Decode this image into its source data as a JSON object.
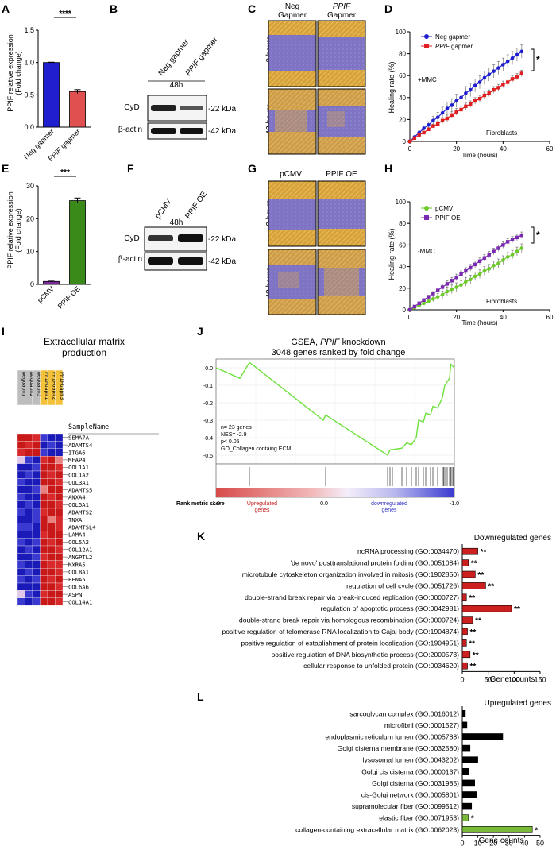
{
  "panels": {
    "A": {
      "letter": "A",
      "ylabel": "PPIF relative expression",
      "ylabel2": "(Fold change)",
      "yticks": [
        "0.0",
        "0.5",
        "1.0",
        "1.5"
      ],
      "categories": [
        "Neg gapmer",
        "PPIF gapmer"
      ],
      "cat2_italic": "PPIF",
      "cat2_rest": " gapmer",
      "sig": "****",
      "colors": [
        "#1f1fd0",
        "#e05050"
      ]
    },
    "B": {
      "letter": "B",
      "lane1": "Neg gapmer",
      "lane2_italic": "PPIF",
      "lane2_rest": " gapmer",
      "time": "48h",
      "row1": "CyD",
      "row2": "β-actin",
      "kda1": "-22 kDa",
      "kda2": "-42 kDa"
    },
    "C": {
      "letter": "C",
      "col1a": "Neg",
      "col1b": "Gapmer",
      "col2a_italic": "PPIF",
      "col2b": "Gapmer",
      "row1": "0 hours",
      "row2": "48 hours"
    },
    "D": {
      "letter": "D",
      "ylabel": "Healing rate (%)",
      "xlabel": "Time (hours)",
      "legend1": "Neg gapmer",
      "legend2_italic": "PPIF",
      "legend2_rest": " gapmer",
      "condition": "+MMC",
      "cell": "Fibroblasts",
      "sig": "*",
      "yticks": [
        "0",
        "20",
        "40",
        "60",
        "80",
        "100"
      ],
      "xticks": [
        "0",
        "20",
        "40",
        "60"
      ]
    },
    "E": {
      "letter": "E",
      "ylabel": "PPIF relative expression",
      "ylabel2": "(Fold change)",
      "yticks": [
        "0",
        "10",
        "20",
        "30"
      ],
      "categories": [
        "pCMV",
        "PPIF OE"
      ],
      "sig": "***",
      "colors": [
        "#7a2a9a",
        "#3a8a1a"
      ]
    },
    "F": {
      "letter": "F",
      "lane1": "pCMV",
      "lane2": "PPIF OE",
      "time": "48h",
      "row1": "CyD",
      "row2": "β-actin",
      "kda1": "-22 kDa",
      "kda2": "-42 kDa"
    },
    "G": {
      "letter": "G",
      "col1": "pCMV",
      "col2": "PPIF OE",
      "row1": "0 hours",
      "row2": "48 hours"
    },
    "H": {
      "letter": "H",
      "ylabel": "Healing rate (%)",
      "xlabel": "Time (hours)",
      "legend1": "pCMV",
      "legend2": "PPIF OE",
      "condition": "-MMC",
      "cell": "Fibroblasts",
      "sig": "*",
      "yticks": [
        "0",
        "20",
        "40",
        "60",
        "80",
        "100"
      ],
      "xticks": [
        "0",
        "20",
        "40",
        "60"
      ]
    },
    "I": {
      "letter": "I",
      "title1": "Extracellular matrix",
      "title2": "production",
      "samples": [
        "NegGapm1",
        "NegGapm2",
        "NegGapm3",
        "PPIFGapm1",
        "PPIFGapm2",
        "PPIFGapm3"
      ],
      "sample_header": "SampleName",
      "genes": [
        "SEMA7A",
        "ADAMTS4",
        "ITGA6",
        "MFAP4",
        "COL1A1",
        "COL1A2",
        "COL3A1",
        "ADAMTS5",
        "ANXA4",
        "COL5A1",
        "ADAMTS2",
        "TNXA",
        "ADAMTSL4",
        "LAMA4",
        "COL5A2",
        "COL12A1",
        "ANGPTL2",
        "MXRA5",
        "COL8A1",
        "EFNA5",
        "COL6A6",
        "ASPN",
        "COL14A1"
      ]
    },
    "J": {
      "letter": "J",
      "title1_pre": "GSEA, ",
      "title1_italic": "PPIF",
      "title1_post": " knockdown",
      "title2": "3048 genes ranked by fold change",
      "stat1": "n= 23 genes",
      "stat2": "NES= -2.9",
      "stat3": "p< 0.05",
      "stat4": "GO_Collagen containg ECM",
      "yticks": [
        "0.0",
        "-0.1",
        "-0.2",
        "-0.3",
        "-0.4",
        "-0.5"
      ],
      "rank_label": "Rank metric score",
      "rank_left": "1.0",
      "rank_mid": "0.0",
      "rank_right": "-1.0",
      "up1": "Upregulated",
      "up2": "genes",
      "down1": "downregulated",
      "down2": "genes"
    },
    "K": {
      "letter": "K",
      "title": "Downregulated genes",
      "xlabel": "Gene counts",
      "xticks": [
        "0",
        "50",
        "100",
        "150"
      ],
      "sig": "**",
      "color": "#cc1f1f"
    },
    "L": {
      "letter": "L",
      "title": "Upregulated genes",
      "xlabel": "Gene counts",
      "xticks": [
        "0",
        "10",
        "20",
        "30",
        "40",
        "50"
      ],
      "sig": "*"
    }
  },
  "chart_data": [
    {
      "panel": "A",
      "type": "bar",
      "categories": [
        "Neg gapmer",
        "PPIF gapmer"
      ],
      "values": [
        1.0,
        0.55
      ],
      "errors": [
        0.005,
        0.03
      ],
      "ylabel": "PPIF relative expression (Fold change)",
      "ylim": [
        0,
        1.5
      ]
    },
    {
      "panel": "D",
      "type": "line",
      "x": [
        0,
        2,
        4,
        6,
        8,
        10,
        12,
        14,
        16,
        18,
        20,
        22,
        24,
        26,
        28,
        30,
        32,
        34,
        36,
        38,
        40,
        42,
        44,
        46,
        48
      ],
      "series": [
        {
          "name": "Neg gapmer",
          "values": [
            0,
            4,
            8,
            12,
            15,
            19,
            22,
            26,
            30,
            33,
            37,
            40,
            44,
            47,
            51,
            54,
            58,
            61,
            64,
            67,
            70,
            73,
            76,
            79,
            82
          ],
          "err": 6
        },
        {
          "name": "PPIF gapmer",
          "values": [
            0,
            3,
            6,
            8,
            11,
            14,
            16,
            19,
            21,
            24,
            27,
            29,
            32,
            34,
            37,
            39,
            42,
            44,
            47,
            49,
            52,
            54,
            57,
            59,
            62
          ],
          "err": 3
        }
      ],
      "xlabel": "Time (hours)",
      "ylabel": "Healing rate (%)",
      "xlim": [
        0,
        60
      ],
      "ylim": [
        0,
        100
      ]
    },
    {
      "panel": "E",
      "type": "bar",
      "categories": [
        "pCMV",
        "PPIF OE"
      ],
      "values": [
        0.9,
        25.5
      ],
      "errors": [
        0.1,
        0.8
      ],
      "ylabel": "PPIF relative expression (Fold change)",
      "ylim": [
        0,
        30
      ]
    },
    {
      "panel": "H",
      "type": "line",
      "x": [
        0,
        2,
        4,
        6,
        8,
        10,
        12,
        14,
        16,
        18,
        20,
        22,
        24,
        26,
        28,
        30,
        32,
        34,
        36,
        38,
        40,
        42,
        44,
        46,
        48
      ],
      "series": [
        {
          "name": "pCMV",
          "values": [
            0,
            2,
            4,
            6,
            8,
            10,
            12,
            14,
            17,
            19,
            21,
            23,
            26,
            28,
            31,
            33,
            36,
            38,
            41,
            43,
            46,
            49,
            51,
            54,
            57
          ],
          "err": 4
        },
        {
          "name": "PPIF OE",
          "values": [
            0,
            3,
            6,
            9,
            12,
            15,
            18,
            21,
            24,
            27,
            30,
            33,
            36,
            39,
            42,
            45,
            48,
            51,
            54,
            57,
            60,
            63,
            65,
            67,
            69
          ],
          "err": 3
        }
      ],
      "xlabel": "Time (hours)",
      "ylabel": "Healing rate (%)",
      "xlim": [
        0,
        60
      ],
      "ylim": [
        0,
        100
      ]
    },
    {
      "panel": "K",
      "type": "bar",
      "orientation": "horizontal",
      "categories": [
        "ncRNA processing (GO:0034470)",
        "'de novo' posttranslational protein folding (GO:0051084)",
        "microtubule cytoskeleton organization involved in mitosis (GO:1902850)",
        "regulation of cell cycle (GO:0051726)",
        "double-strand break repair via break-induced replication (GO:0000727)",
        "regulation of apoptotic process (GO:0042981)",
        "double-strand break repair via homologous recombination (GO:0000724)",
        "positive regulation of telomerase RNA localization to Cajal body (GO:1904874)",
        "positive regulation of establishment of protein localization (GO:1904951)",
        "positive regulation of DNA biosynthetic process (GO:2000573)",
        "cellular response to unfolded protein (GO:0034620)"
      ],
      "values": [
        30,
        12,
        25,
        45,
        8,
        95,
        20,
        10,
        8,
        15,
        10
      ],
      "xlabel": "Gene counts",
      "xlim": [
        0,
        150
      ]
    },
    {
      "panel": "L",
      "type": "bar",
      "orientation": "horizontal",
      "categories": [
        "sarcoglycan complex (GO:0016012)",
        "microfibril (GO:0001527)",
        "endoplasmic reticulum lumen (GO:0005788)",
        "Golgi cisterna membrane (GO:0032580)",
        "lysosomal lumen (GO:0043202)",
        "Golgi cis cisterna (GO:0000137)",
        "Golgi cisterna (GO:0031985)",
        "cis-Golgi network (GO:0005801)",
        "supramolecular fiber (GO:0099512)",
        "elastic fiber (GO:0071953)",
        "collagen-containing extracellular matrix (GO:0062023)"
      ],
      "values": [
        2,
        3,
        26,
        5,
        10,
        4,
        8,
        9,
        6,
        4,
        45
      ],
      "colors": [
        "#000000",
        "#000000",
        "#000000",
        "#000000",
        "#000000",
        "#000000",
        "#000000",
        "#000000",
        "#000000",
        "#7ab83a",
        "#7ab83a"
      ],
      "sig": [
        "",
        "",
        "",
        "",
        "",
        "",
        "",
        "",
        "",
        "*",
        "*"
      ],
      "xlabel": "Gene counts",
      "xlim": [
        0,
        50
      ]
    }
  ]
}
